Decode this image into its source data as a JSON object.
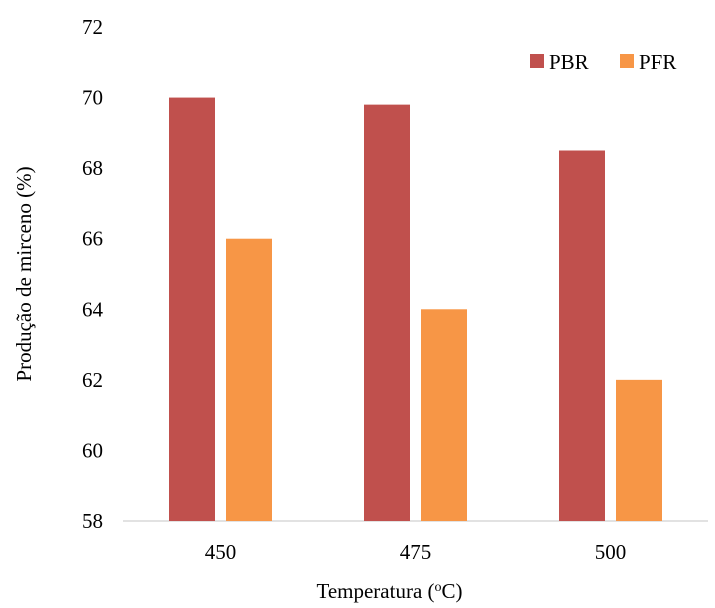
{
  "chart_data": {
    "type": "bar",
    "title": "",
    "xlabel_main": "Temperatura (",
    "xlabel_sup": "o",
    "xlabel_end": "C)",
    "ylabel": "Produção de mirceno (%)",
    "categories": [
      "450",
      "475",
      "500"
    ],
    "series": [
      {
        "name": "PBR",
        "color": "#c0504d",
        "values": [
          70.0,
          69.8,
          68.5
        ]
      },
      {
        "name": "PFR",
        "color": "#f79646",
        "values": [
          66.0,
          64.0,
          62.0
        ]
      }
    ],
    "ylim": [
      58,
      72
    ],
    "yticks": [
      58,
      60,
      62,
      64,
      66,
      68,
      70,
      72
    ],
    "grid": false,
    "legend_position": "top-right"
  }
}
